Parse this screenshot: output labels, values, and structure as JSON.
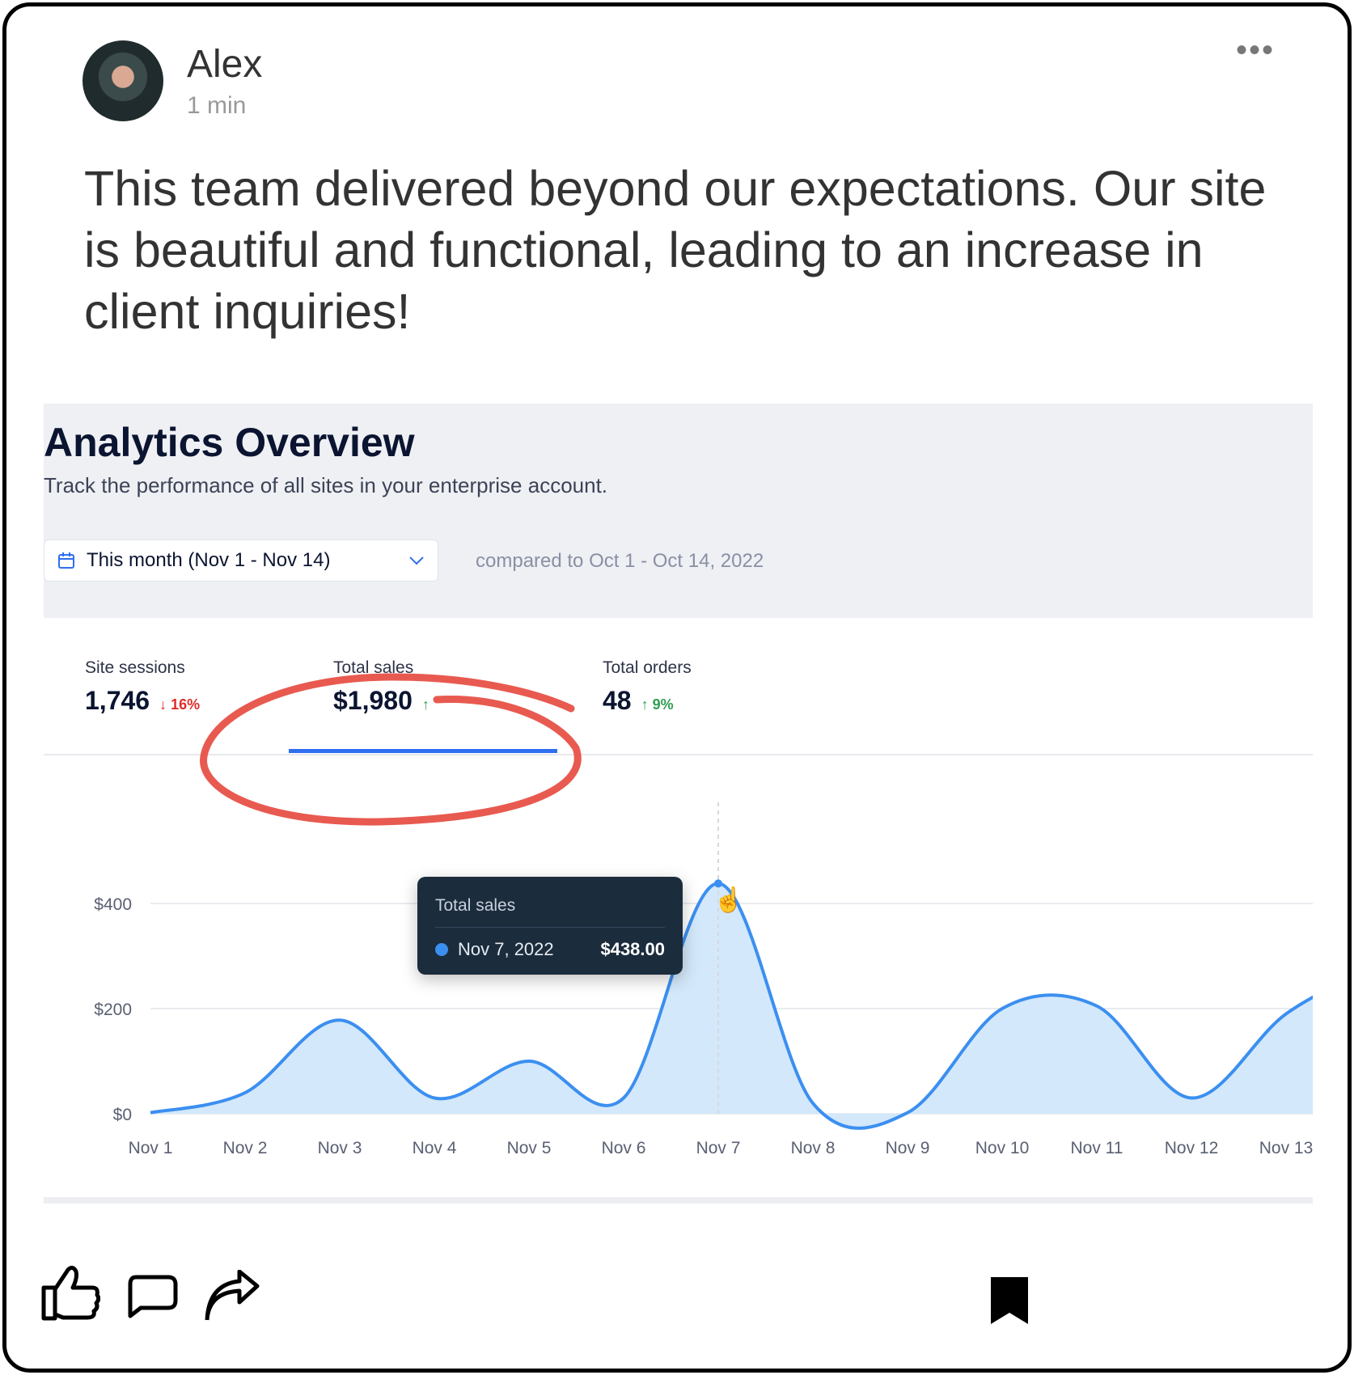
{
  "post": {
    "author": "Alex",
    "time": "1 min",
    "more_icon": "more-horizontal-icon",
    "text": "This team delivered beyond our expectations. Our site is beautiful and functional, leading to an increase in client inquiries!"
  },
  "analytics": {
    "title": "Analytics Overview",
    "subtitle": "Track the performance of all sites in your enterprise account.",
    "date_range": "This month (Nov 1 - Nov 14)",
    "compared": "compared to Oct 1 - Oct 14, 2022",
    "stats": [
      {
        "label": "Site sessions",
        "value": "1,746",
        "delta": "16%",
        "direction": "down"
      },
      {
        "label": "Total sales",
        "value": "$1,980",
        "delta": "",
        "direction": "up"
      },
      {
        "label": "Total orders",
        "value": "48",
        "delta": "9%",
        "direction": "up"
      }
    ],
    "tooltip": {
      "title": "Total sales",
      "date": "Nov 7, 2022",
      "value": "$438.00"
    }
  },
  "chart_data": {
    "type": "area",
    "categories": [
      "Nov 1",
      "Nov 2",
      "Nov 3",
      "Nov 4",
      "Nov 5",
      "Nov 6",
      "Nov 7",
      "Nov 8",
      "Nov 9",
      "Nov 10",
      "Nov 11",
      "Nov 12",
      "Nov 13"
    ],
    "series": [
      {
        "values": [
          2,
          40,
          178,
          30,
          100,
          30,
          438,
          20,
          2,
          200,
          205,
          30,
          190
        ]
      }
    ],
    "yticks": [
      "$0",
      "$200",
      "$400"
    ],
    "ytick_values": [
      0,
      200,
      400
    ],
    "ylim": [
      0,
      480
    ],
    "grid": true,
    "colors": {
      "line": "#3b8ff0",
      "fill": "#d3e8fa"
    }
  },
  "annotation_color": "#e85a50",
  "actions": {
    "like_icon": "thumbs-up-icon",
    "comment_icon": "comment-icon",
    "share_icon": "share-icon",
    "bookmark_icon": "bookmark-icon"
  }
}
